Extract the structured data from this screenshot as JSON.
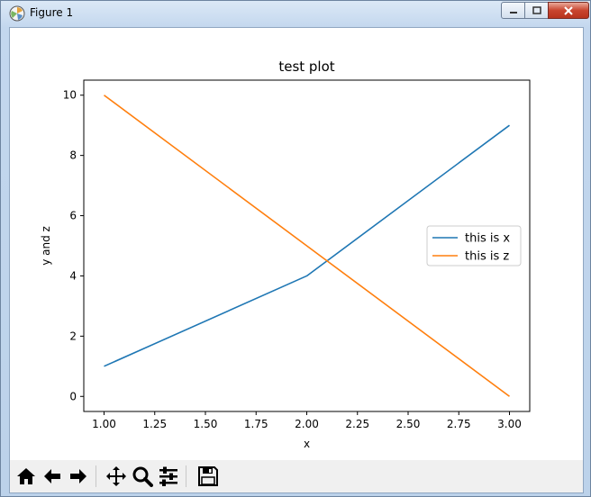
{
  "window": {
    "title": "Figure 1"
  },
  "toolbar": {
    "icons": [
      "home-icon",
      "back-arrow-icon",
      "forward-arrow-icon",
      "pan-icon",
      "zoom-icon",
      "configure-subplots-icon",
      "save-icon"
    ]
  },
  "chart_data": {
    "type": "line",
    "title": "test plot",
    "xlabel": "x",
    "ylabel": "y and z",
    "xlim": [
      0.9,
      3.1
    ],
    "ylim": [
      -0.5,
      10.5
    ],
    "xticks": [
      "1.00",
      "1.25",
      "1.50",
      "1.75",
      "2.00",
      "2.25",
      "2.50",
      "2.75",
      "3.00"
    ],
    "yticks": [
      "0",
      "2",
      "4",
      "6",
      "8",
      "10"
    ],
    "grid": false,
    "legend_position": "center-right",
    "x": [
      1,
      2,
      3
    ],
    "series": [
      {
        "name": "this is x",
        "values": [
          1,
          4,
          9
        ],
        "color": "#1f77b4"
      },
      {
        "name": "this is z",
        "values": [
          10,
          5,
          0
        ],
        "color": "#ff7f0e"
      }
    ]
  }
}
